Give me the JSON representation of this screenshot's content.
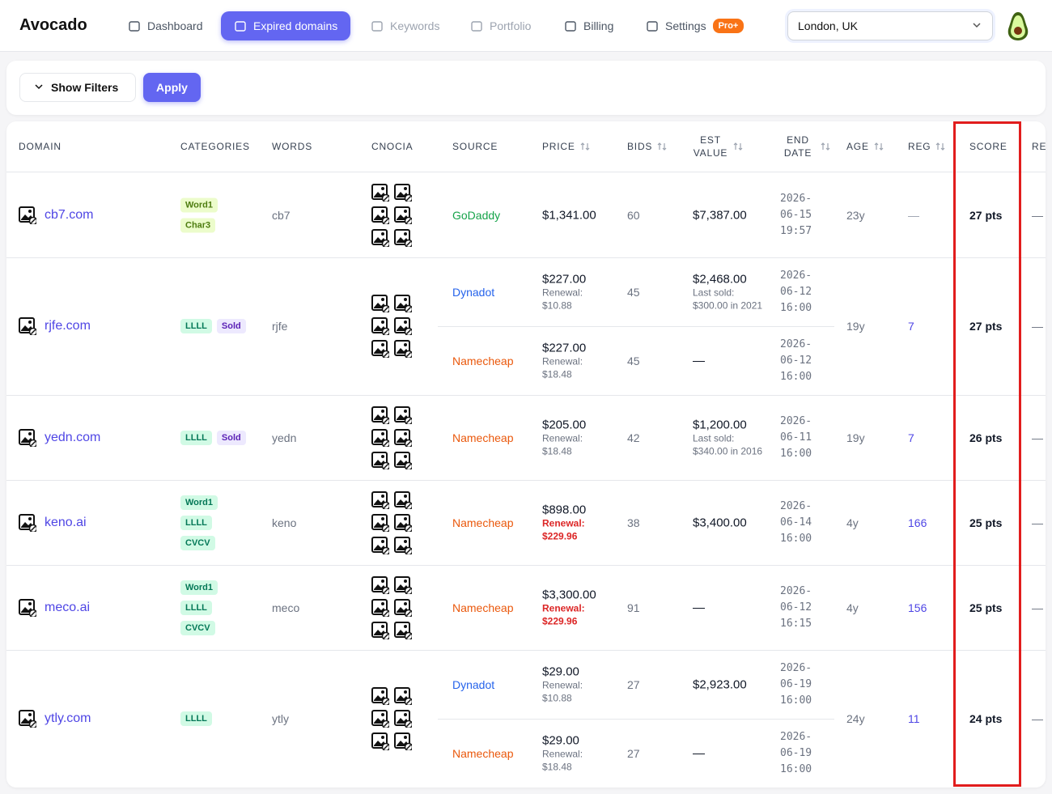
{
  "nav": {
    "brand": "Avocado",
    "items": [
      {
        "label": "Dashboard",
        "state": "normal"
      },
      {
        "label": "Expired domains",
        "state": "active"
      },
      {
        "label": "Keywords",
        "state": "muted"
      },
      {
        "label": "Portfolio",
        "state": "muted"
      },
      {
        "label": "Billing",
        "state": "normal"
      },
      {
        "label": "Settings",
        "state": "normal"
      }
    ],
    "badge": "Pro+",
    "location": "London, UK"
  },
  "toolbar": {
    "filters": "Show Filters",
    "apply": "Apply"
  },
  "table": {
    "headers": [
      {
        "label": "DOMAIN",
        "sortable": false
      },
      {
        "label": "CATEGORIES",
        "sortable": false
      },
      {
        "label": "WORDS",
        "sortable": false
      },
      {
        "label": "CNOCIA",
        "sortable": false
      },
      {
        "label": "SOURCE",
        "sortable": false
      },
      {
        "label": "PRICE",
        "sortable": true
      },
      {
        "label": "BIDS",
        "sortable": true
      },
      {
        "label": "EST VALUE",
        "sortable": true
      },
      {
        "label": "END DATE",
        "sortable": true
      },
      {
        "label": "AGE",
        "sortable": true
      },
      {
        "label": "REG",
        "sortable": true
      },
      {
        "label": "SCORE",
        "sortable": false
      },
      {
        "label": "RE",
        "sortable": false
      }
    ],
    "renewal_label": "Renewal:",
    "rows": [
      {
        "domain": "cb7.com",
        "tags": [
          {
            "text": "Word1",
            "color": "lime"
          },
          {
            "text": "Char3",
            "color": "lime"
          }
        ],
        "words": "cb7",
        "offers": [
          {
            "source": "GoDaddy",
            "source_color": "#16a34a",
            "price": "$1,341.00",
            "bids": "60",
            "est_value": "$7,387.00",
            "end_date": "2026-06-15 19:57"
          }
        ],
        "age": "23y",
        "reg": "—",
        "reg_color": "#9ca3af",
        "score": "27 pts",
        "re": "—"
      },
      {
        "domain": "rjfe.com",
        "tags": [
          {
            "text": "LLLL",
            "color": "green"
          },
          {
            "text": "Sold",
            "color": "purple"
          }
        ],
        "words": "rjfe",
        "offers": [
          {
            "source": "Dynadot",
            "source_color": "#2563eb",
            "price": "$227.00",
            "renewal": "$10.88",
            "renewal_alert": false,
            "bids": "45",
            "est_value": "$2,468.00",
            "last_sold": "Last sold: $300.00 in 2021",
            "end_date": "2026-06-12 16:00"
          },
          {
            "source": "Namecheap",
            "source_color": "#ea580c",
            "price": "$227.00",
            "renewal": "$18.48",
            "renewal_alert": false,
            "bids": "45",
            "est_value": "—",
            "end_date": "2026-06-12 16:00"
          }
        ],
        "age": "19y",
        "reg": "7",
        "reg_color": "#4f46e5",
        "score": "27 pts",
        "re": "—"
      },
      {
        "domain": "yedn.com",
        "tags": [
          {
            "text": "LLLL",
            "color": "green"
          },
          {
            "text": "Sold",
            "color": "purple"
          }
        ],
        "words": "yedn",
        "offers": [
          {
            "source": "Namecheap",
            "source_color": "#ea580c",
            "price": "$205.00",
            "renewal": "$18.48",
            "renewal_alert": false,
            "bids": "42",
            "est_value": "$1,200.00",
            "last_sold": "Last sold: $340.00 in 2016",
            "end_date": "2026-06-11 16:00"
          }
        ],
        "age": "19y",
        "reg": "7",
        "reg_color": "#4f46e5",
        "score": "26 pts",
        "re": "—"
      },
      {
        "domain": "keno.ai",
        "tags": [
          {
            "text": "Word1",
            "color": "green"
          },
          {
            "text": "LLLL",
            "color": "green"
          },
          {
            "text": "CVCV",
            "color": "green"
          }
        ],
        "words": "keno",
        "offers": [
          {
            "source": "Namecheap",
            "source_color": "#ea580c",
            "price": "$898.00",
            "renewal": "$229.96",
            "renewal_alert": true,
            "bids": "38",
            "est_value": "$3,400.00",
            "end_date": "2026-06-14 16:00"
          }
        ],
        "age": "4y",
        "reg": "166",
        "reg_color": "#4f46e5",
        "score": "25 pts",
        "re": "—"
      },
      {
        "domain": "meco.ai",
        "tags": [
          {
            "text": "Word1",
            "color": "green"
          },
          {
            "text": "LLLL",
            "color": "green"
          },
          {
            "text": "CVCV",
            "color": "green"
          }
        ],
        "words": "meco",
        "offers": [
          {
            "source": "Namecheap",
            "source_color": "#ea580c",
            "price": "$3,300.00",
            "renewal": "$229.96",
            "renewal_alert": true,
            "bids": "91",
            "est_value": "—",
            "end_date": "2026-06-12 16:15"
          }
        ],
        "age": "4y",
        "reg": "156",
        "reg_color": "#4f46e5",
        "score": "25 pts",
        "re": "—"
      },
      {
        "domain": "ytly.com",
        "tags": [
          {
            "text": "LLLL",
            "color": "green"
          }
        ],
        "words": "ytly",
        "offers": [
          {
            "source": "Dynadot",
            "source_color": "#2563eb",
            "price": "$29.00",
            "renewal": "$10.88",
            "renewal_alert": false,
            "bids": "27",
            "est_value": "$2,923.00",
            "end_date": "2026-06-19 16:00"
          },
          {
            "source": "Namecheap",
            "source_color": "#ea580c",
            "price": "$29.00",
            "renewal": "$18.48",
            "renewal_alert": false,
            "bids": "27",
            "est_value": "—",
            "end_date": "2026-06-19 16:00"
          }
        ],
        "age": "24y",
        "reg": "11",
        "reg_color": "#4f46e5",
        "score": "24 pts",
        "re": "—"
      }
    ]
  }
}
